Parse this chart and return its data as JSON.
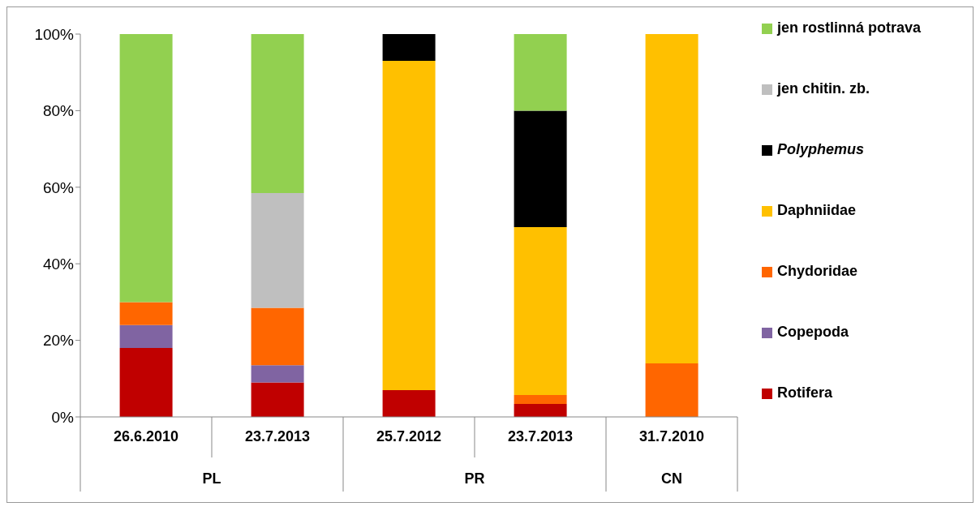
{
  "chart_data": {
    "type": "bar",
    "stacked": true,
    "categories": [
      "26.6.2010",
      "23.7.2013",
      "25.7.2012",
      "23.7.2013",
      "31.7.2010"
    ],
    "series": [
      {
        "name": "Rotifera",
        "color": "#c00000",
        "values": [
          18,
          9,
          7,
          3.4,
          null
        ]
      },
      {
        "name": "Copepoda",
        "color": "#8064a2",
        "values": [
          6,
          4.5,
          null,
          null,
          null
        ]
      },
      {
        "name": "Chydoridae",
        "color": "#ff6600",
        "values": [
          6,
          15,
          null,
          2.3,
          14
        ]
      },
      {
        "name": "Daphniidae",
        "color": "#ffc000",
        "values": [
          null,
          null,
          86,
          43.9,
          86
        ]
      },
      {
        "name": "Polyphemus",
        "color": "#000000",
        "values": [
          null,
          null,
          7,
          30.4,
          null
        ]
      },
      {
        "name": "jen chitin. zb.",
        "color": "#bfbfbf",
        "values": [
          null,
          30,
          null,
          null,
          null
        ]
      },
      {
        "name": "jen rostlinná potrava",
        "color": "#92d050",
        "values": [
          70,
          41.5,
          null,
          20,
          null
        ]
      }
    ],
    "ylim": [
      0,
      100
    ],
    "yticks": [
      {
        "value": 0,
        "label": "0%"
      },
      {
        "value": 20,
        "label": "20%"
      },
      {
        "value": 40,
        "label": "40%"
      },
      {
        "value": 60,
        "label": "60%"
      },
      {
        "value": 80,
        "label": "80%"
      },
      {
        "value": 100,
        "label": "100%"
      }
    ],
    "annotations": [
      "PL",
      "PR",
      "CN"
    ],
    "legend": "right",
    "grid": false
  }
}
